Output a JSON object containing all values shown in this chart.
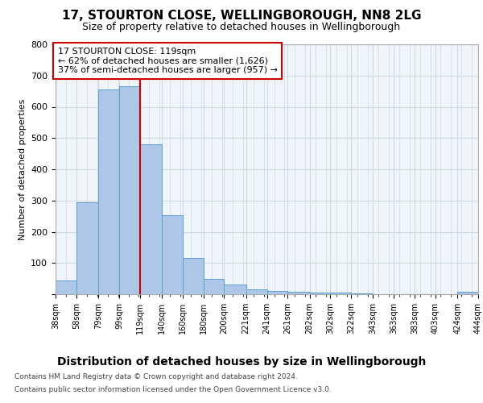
{
  "title1": "17, STOURTON CLOSE, WELLINGBOROUGH, NN8 2LG",
  "title2": "Size of property relative to detached houses in Wellingborough",
  "xlabel": "Distribution of detached houses by size in Wellingborough",
  "ylabel": "Number of detached properties",
  "bar_edges": [
    38,
    58,
    79,
    99,
    119,
    140,
    160,
    180,
    200,
    221,
    241,
    261,
    282,
    302,
    322,
    343,
    363,
    383,
    403,
    424,
    444
  ],
  "bar_heights": [
    45,
    295,
    655,
    665,
    480,
    253,
    115,
    48,
    30,
    15,
    10,
    8,
    4,
    4,
    2,
    1,
    1,
    0,
    0,
    7
  ],
  "bar_color": "#aec6e8",
  "bar_edge_color": "#5a9fd4",
  "vline_x": 119,
  "vline_color": "#cc0000",
  "annotation_text": "17 STOURTON CLOSE: 119sqm\n← 62% of detached houses are smaller (1,626)\n37% of semi-detached houses are larger (957) →",
  "annotation_box_color": "#cc0000",
  "ylim": [
    0,
    800
  ],
  "yticks": [
    0,
    100,
    200,
    300,
    400,
    500,
    600,
    700,
    800
  ],
  "grid_color": "#d0d8e8",
  "bg_color": "#f0f4fb",
  "footer1": "Contains HM Land Registry data © Crown copyright and database right 2024.",
  "footer2": "Contains public sector information licensed under the Open Government Licence v3.0.",
  "tick_labels": [
    "38sqm",
    "58sqm",
    "79sqm",
    "99sqm",
    "119sqm",
    "140sqm",
    "160sqm",
    "180sqm",
    "200sqm",
    "221sqm",
    "241sqm",
    "261sqm",
    "282sqm",
    "302sqm",
    "322sqm",
    "343sqm",
    "363sqm",
    "383sqm",
    "403sqm",
    "424sqm",
    "444sqm"
  ],
  "title1_fontsize": 11,
  "title2_fontsize": 9,
  "xlabel_fontsize": 10,
  "ylabel_fontsize": 8
}
